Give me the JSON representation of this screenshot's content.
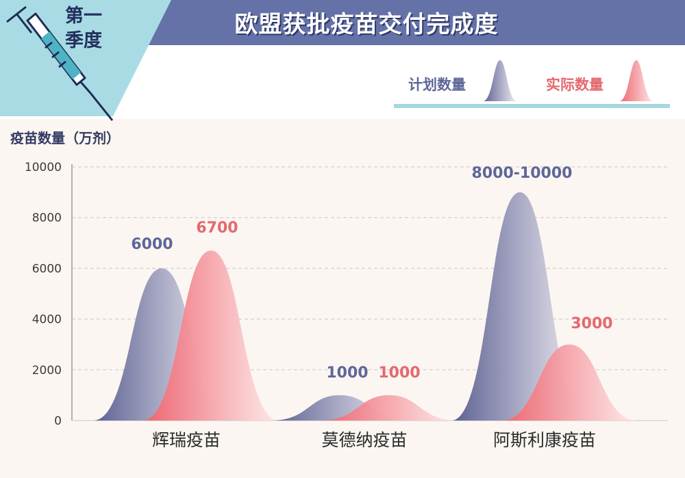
{
  "header": {
    "quarter_line1": "第一",
    "quarter_line2": "季度",
    "title": "欧盟获批疫苗交付完成度"
  },
  "legend": {
    "plan_label": "计划数量",
    "actual_label": "实际数量"
  },
  "colors": {
    "header": "#6572a8",
    "plan": "#5b5f90",
    "actual": "#ee6470",
    "plan_text": "#5e6699",
    "actual_text": "#e5686f",
    "accent": "#a6d7df"
  },
  "chart_data": {
    "type": "area",
    "title": "欧盟获批疫苗交付完成度",
    "ylabel": "疫苗数量（万剂）",
    "ylim": [
      0,
      10000
    ],
    "yticks": [
      0,
      2000,
      4000,
      6000,
      8000,
      10000
    ],
    "grid": "horizontal dashed",
    "legend_position": "top-right",
    "categories": [
      "辉瑞疫苗",
      "莫德纳疫苗",
      "阿斯利康疫苗"
    ],
    "series": [
      {
        "name": "计划数量",
        "values": [
          6000,
          1000,
          9000
        ],
        "labels": [
          "6000",
          "1000",
          "8000-10000"
        ]
      },
      {
        "name": "实际数量",
        "values": [
          6700,
          1000,
          3000
        ],
        "labels": [
          "6700",
          "1000",
          "3000"
        ]
      }
    ]
  }
}
